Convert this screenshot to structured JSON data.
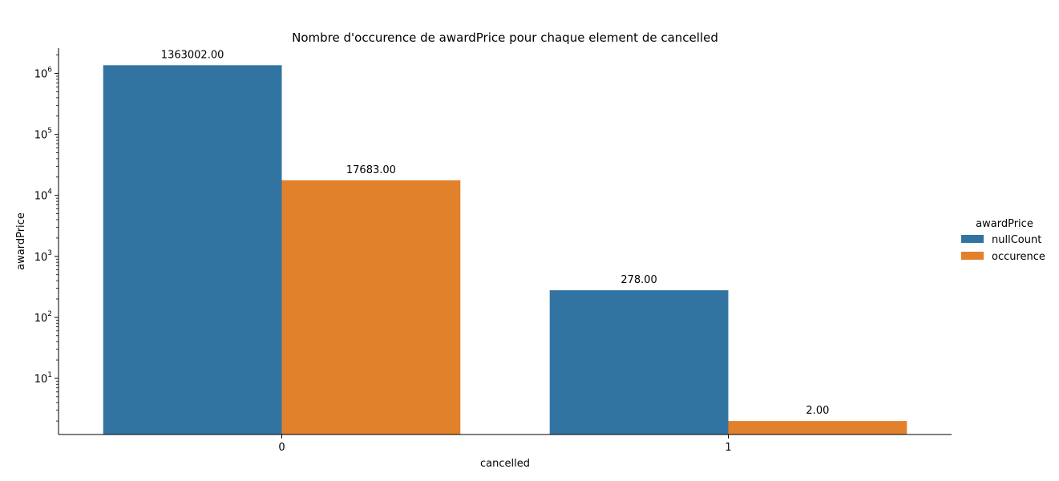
{
  "chart_data": {
    "type": "bar",
    "title": "Nombre d'occurence de awardPrice pour chaque element de cancelled",
    "xlabel": "cancelled",
    "ylabel": "awardPrice",
    "y_scale": "log",
    "ylim": [
      1.2,
      2600000
    ],
    "categories": [
      "0",
      "1"
    ],
    "series": [
      {
        "name": "nullCount",
        "values": [
          1363002,
          278
        ],
        "labels": [
          "1363002.00",
          "278.00"
        ],
        "color": "#3274a1"
      },
      {
        "name": "occurence",
        "values": [
          17683,
          2
        ],
        "labels": [
          "17683.00",
          "2.00"
        ],
        "color": "#e1812c"
      }
    ],
    "yticks": [
      {
        "base": "10",
        "exp": "1",
        "value": 10
      },
      {
        "base": "10",
        "exp": "2",
        "value": 100
      },
      {
        "base": "10",
        "exp": "3",
        "value": 1000
      },
      {
        "base": "10",
        "exp": "4",
        "value": 10000
      },
      {
        "base": "10",
        "exp": "5",
        "value": 100000
      },
      {
        "base": "10",
        "exp": "6",
        "value": 1000000
      }
    ],
    "legend": {
      "title": "awardPrice",
      "position": "right"
    },
    "grid": false
  }
}
